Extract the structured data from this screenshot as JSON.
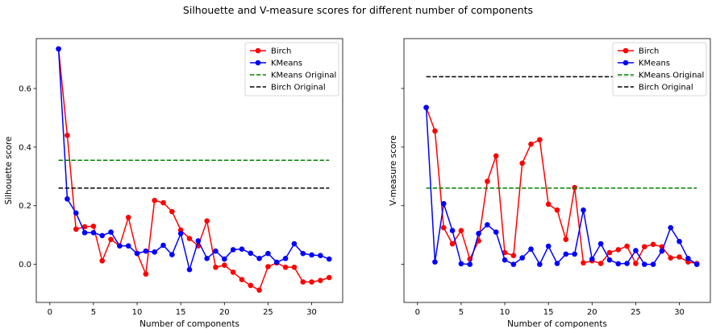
{
  "figure_title": "Silhouette and V-measure scores for different number of components",
  "colors": {
    "birch": "#ff0000",
    "kmeans": "#0000ff",
    "kmeans_original": "#008000",
    "birch_original": "#000000"
  },
  "chart_data": [
    {
      "type": "line",
      "title": "",
      "xlabel": "Number of components",
      "ylabel": "Silhouette score",
      "xlim": [
        -1.55,
        33.55
      ],
      "ylim": [
        -0.13,
        0.77
      ],
      "xticks": [
        0,
        5,
        10,
        15,
        20,
        25,
        30
      ],
      "yticks": [
        0.0,
        0.2,
        0.4,
        0.6
      ],
      "ytick_labels": [
        "0.0",
        "0.2",
        "0.4",
        "0.6"
      ],
      "grid": false,
      "legend_position": "top-right",
      "x": [
        1,
        2,
        3,
        4,
        5,
        6,
        7,
        8,
        9,
        10,
        11,
        12,
        13,
        14,
        15,
        16,
        17,
        18,
        19,
        20,
        21,
        22,
        23,
        24,
        25,
        26,
        27,
        28,
        29,
        30,
        31,
        32
      ],
      "series": [
        {
          "name": "Birch",
          "style": "solid-marker",
          "color": "#ff0000",
          "values": [
            0.735,
            0.44,
            0.12,
            0.128,
            0.13,
            0.012,
            0.085,
            0.063,
            0.16,
            0.038,
            -0.033,
            0.218,
            0.21,
            0.18,
            0.117,
            0.088,
            0.063,
            0.148,
            -0.01,
            -0.003,
            -0.027,
            -0.052,
            -0.072,
            -0.088,
            -0.008,
            0.005,
            -0.01,
            -0.01,
            -0.06,
            -0.06,
            -0.055,
            -0.045
          ]
        },
        {
          "name": "KMeans",
          "style": "solid-marker",
          "color": "#0000ff",
          "values": [
            0.735,
            0.223,
            0.175,
            0.108,
            0.108,
            0.098,
            0.11,
            0.063,
            0.063,
            0.037,
            0.045,
            0.042,
            0.065,
            0.033,
            0.105,
            -0.018,
            0.08,
            0.02,
            0.045,
            0.018,
            0.05,
            0.052,
            0.038,
            0.02,
            0.037,
            0.007,
            0.02,
            0.07,
            0.037,
            0.032,
            0.03,
            0.018
          ]
        },
        {
          "name": "KMeans Original",
          "style": "dashed",
          "color": "#008000",
          "constant": 0.355
        },
        {
          "name": "Birch Original",
          "style": "dashed",
          "color": "#000000",
          "constant": 0.26
        }
      ]
    },
    {
      "type": "line",
      "title": "",
      "xlabel": "Number of components",
      "ylabel": "V-measure score",
      "xlim": [
        -1.55,
        33.55
      ],
      "ylim": [
        -0.13,
        0.77
      ],
      "xticks": [
        0,
        5,
        10,
        15,
        20,
        25,
        30
      ],
      "yticks": [
        0.0,
        0.2,
        0.4,
        0.6
      ],
      "ytick_labels": [
        "",
        "",
        "",
        ""
      ],
      "grid": false,
      "legend_position": "top-right",
      "x": [
        1,
        2,
        3,
        4,
        5,
        6,
        7,
        8,
        9,
        10,
        11,
        12,
        13,
        14,
        15,
        16,
        17,
        18,
        19,
        20,
        21,
        22,
        23,
        24,
        25,
        26,
        27,
        28,
        29,
        30,
        31,
        32
      ],
      "series": [
        {
          "name": "Birch",
          "style": "solid-marker",
          "color": "#ff0000",
          "values": [
            0.535,
            0.455,
            0.125,
            0.07,
            0.115,
            0.018,
            0.08,
            0.283,
            0.37,
            0.04,
            0.03,
            0.345,
            0.41,
            0.425,
            0.205,
            0.185,
            0.085,
            0.262,
            0.005,
            0.012,
            0.003,
            0.04,
            0.05,
            0.062,
            0.003,
            0.06,
            0.068,
            0.06,
            0.022,
            0.025,
            0.008,
            0.003
          ]
        },
        {
          "name": "KMeans",
          "style": "solid-marker",
          "color": "#0000ff",
          "values": [
            0.535,
            0.008,
            0.207,
            0.115,
            0.002,
            0.0,
            0.105,
            0.135,
            0.11,
            0.015,
            0.0,
            0.022,
            0.052,
            0.0,
            0.062,
            0.003,
            0.035,
            0.035,
            0.185,
            0.018,
            0.07,
            0.015,
            0.002,
            0.003,
            0.047,
            0.0,
            0.0,
            0.045,
            0.125,
            0.078,
            0.02,
            0.0
          ]
        },
        {
          "name": "KMeans Original",
          "style": "dashed",
          "color": "#008000",
          "constant": 0.26
        },
        {
          "name": "Birch Original",
          "style": "dashed",
          "color": "#000000",
          "constant": 0.64
        }
      ]
    }
  ]
}
